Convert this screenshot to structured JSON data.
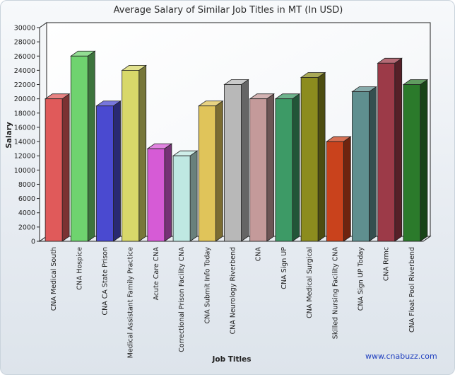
{
  "chart_data": {
    "type": "bar",
    "title": "Average Salary of Similar Job Titles in MT (In USD)",
    "xlabel": "Job Titles",
    "ylabel": "Salary",
    "ylim": [
      0,
      30000
    ],
    "yticks": [
      0,
      2000,
      4000,
      6000,
      8000,
      10000,
      12000,
      14000,
      16000,
      18000,
      20000,
      22000,
      24000,
      26000,
      28000,
      30000
    ],
    "grid": false,
    "legend": "none",
    "categories": [
      "CNA Medical South",
      "CNA Hospice",
      "CNA CA State Prison",
      "Medical Assistant Family Practice",
      "Acute Care CNA",
      "Correctional Prison Facility CNA",
      "CNA Submit Info Today",
      "CNA Neurology Riverbend",
      "CNA",
      "CNA Sign UP",
      "CNA Medical Surgical",
      "Skilled Nursing Facility CNA",
      "CNA Sign UP Today",
      "CNA Rrmc",
      "CNA Float Pool Riverbend"
    ],
    "values": [
      20000,
      26000,
      19000,
      24000,
      13000,
      12000,
      19000,
      22000,
      20000,
      20000,
      23000,
      14000,
      21000,
      25000,
      22000
    ],
    "colors": [
      "#e05a5a",
      "#6fd36f",
      "#4a4ad0",
      "#d8d86a",
      "#d65bd6",
      "#bfe8e2",
      "#e0c45a",
      "#b8b8b8",
      "#c49a9a",
      "#3d9a66",
      "#8c8c1e",
      "#c9421c",
      "#5f8f8f",
      "#9c3a48",
      "#2b7a2b"
    ]
  },
  "watermark": "www.cnabuzz.com"
}
